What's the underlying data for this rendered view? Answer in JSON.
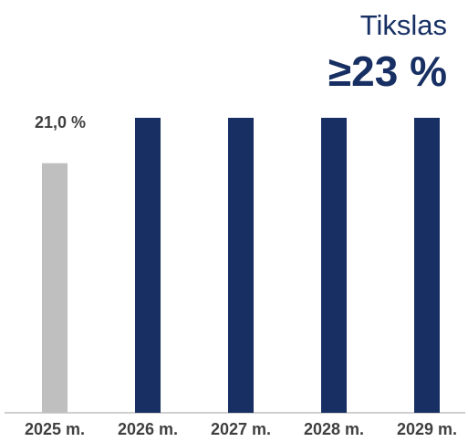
{
  "chart_data": {
    "type": "bar",
    "annotation": {
      "title": "Tikslas",
      "value_label": "≥23 %"
    },
    "categories": [
      "2025 m.",
      "2026 m.",
      "2027 m.",
      "2028 m.",
      "2029 m."
    ],
    "values": [
      21,
      23,
      23,
      23,
      23
    ],
    "value_labels": [
      "21,0 %",
      null,
      null,
      null,
      null
    ],
    "colors": [
      "#bfbfbf",
      "#172f63",
      "#172f63",
      "#172f63",
      "#172f63"
    ],
    "ylim": [
      10,
      23
    ]
  }
}
